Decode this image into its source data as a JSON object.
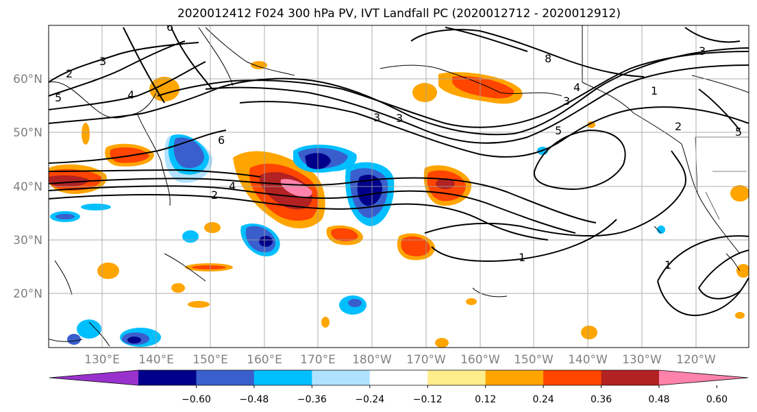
{
  "title": "2020012412 F024 300 hPa PV, IVT Landfall PC (2020012712 - 2020012912)",
  "map": {
    "lon_ticks": [
      "130°E",
      "140°E",
      "150°E",
      "160°E",
      "170°E",
      "180°W",
      "170°W",
      "160°W",
      "150°W",
      "140°W",
      "130°W",
      "120°W"
    ],
    "lat_ticks": [
      "60°N",
      "50°N",
      "40°N",
      "30°N",
      "20°N"
    ],
    "contour_labels": [
      "6",
      "2",
      "3",
      "5",
      "4",
      "6",
      "4",
      "2",
      "3",
      "3",
      "5",
      "8",
      "4",
      "3",
      "1",
      "2",
      "5",
      "3",
      "1",
      "1"
    ]
  },
  "colorbar": {
    "ticks": [
      "−0.60",
      "−0.48",
      "−0.36",
      "−0.24",
      "−0.12",
      "0.12",
      "0.24",
      "0.36",
      "0.48",
      "0.60"
    ],
    "colors": [
      "#9932cc",
      "#00008b",
      "#3a5fcd",
      "#00bfff",
      "#b0e2ff",
      "#ffffff",
      "#ffec8b",
      "#ffa500",
      "#ff4500",
      "#b22222",
      "#ff82ab"
    ]
  }
}
